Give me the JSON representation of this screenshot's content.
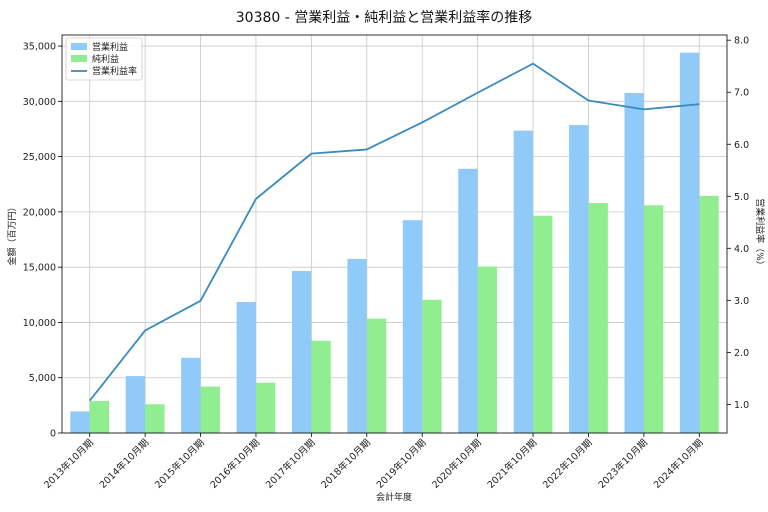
{
  "chart_data": {
    "type": "bar",
    "title": "30380 - 営業利益・純利益と営業利益率の推移",
    "xlabel": "会計年度",
    "ylabel": "金額（百万円）",
    "y2label": "営業利益率（%）",
    "categories": [
      "2013年10月期",
      "2014年10月期",
      "2015年10月期",
      "2016年10月期",
      "2017年10月期",
      "2018年10月期",
      "2019年10月期",
      "2020年10月期",
      "2021年10月期",
      "2022年10月期",
      "2023年10月期",
      "2024年10月期"
    ],
    "series": [
      {
        "name": "営業利益",
        "type": "bar",
        "axis": "left",
        "color": "#90caf9",
        "values": [
          1950,
          5150,
          6800,
          11850,
          14650,
          15750,
          19250,
          23900,
          27350,
          27850,
          30750,
          34400
        ]
      },
      {
        "name": "純利益",
        "type": "bar",
        "axis": "left",
        "color": "#90ee90",
        "values": [
          2900,
          2600,
          4200,
          4550,
          8350,
          10350,
          12050,
          15050,
          19650,
          20800,
          20600,
          21450
        ]
      },
      {
        "name": "営業利益率",
        "type": "line",
        "axis": "right",
        "color": "#3a8bbd",
        "values": [
          1.07,
          2.42,
          2.99,
          4.95,
          5.82,
          5.9,
          6.42,
          6.99,
          7.55,
          6.84,
          6.67,
          6.77
        ]
      }
    ],
    "ylim": [
      0,
      36000
    ],
    "y_ticks": [
      0,
      5000,
      10000,
      15000,
      20000,
      25000,
      30000,
      35000
    ],
    "y_tick_labels": [
      "0",
      "5,000",
      "10,000",
      "15,000",
      "20,000",
      "25,000",
      "30,000",
      "35,000"
    ],
    "y2lim": [
      0.45,
      8.1
    ],
    "y2_ticks": [
      1.0,
      2.0,
      3.0,
      4.0,
      5.0,
      6.0,
      7.0,
      8.0
    ],
    "y2_tick_labels": [
      "1.0",
      "2.0",
      "3.0",
      "4.0",
      "5.0",
      "6.0",
      "7.0",
      "8.0"
    ],
    "grid": true,
    "legend": "top-left"
  }
}
